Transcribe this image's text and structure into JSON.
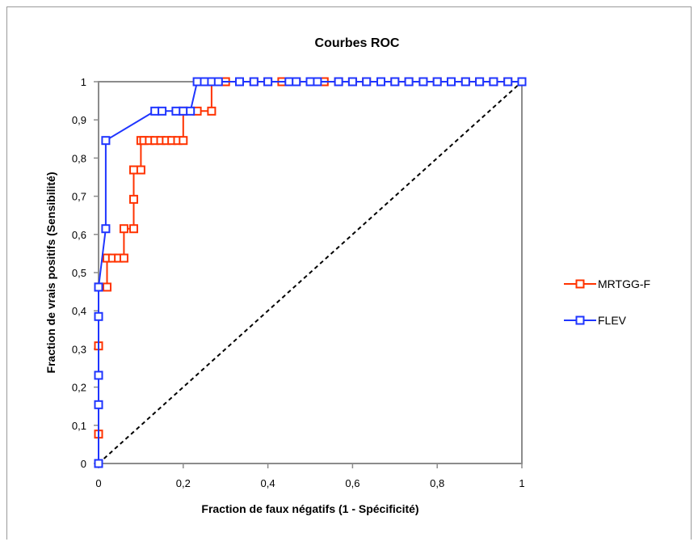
{
  "chart_data": {
    "type": "line",
    "title": "Courbes ROC",
    "xlabel": "Fraction de faux négatifs (1 - Spécificité)",
    "ylabel": "Fraction de vrais positifs (Sensibilité)",
    "xlim": [
      0,
      1
    ],
    "ylim": [
      0,
      1
    ],
    "x_ticks": [
      "0",
      "0,2",
      "0,4",
      "0,6",
      "0,8",
      "1"
    ],
    "y_ticks": [
      "0",
      "0,1",
      "0,2",
      "0,3",
      "0,4",
      "0,5",
      "0,6",
      "0,7",
      "0,8",
      "0,9",
      "1"
    ],
    "legend_position": "right",
    "grid": false,
    "series": [
      {
        "name": "MRTGG-F",
        "color": "#ff3300",
        "x": [
          0,
          0,
          0,
          0,
          0.02,
          0.02,
          0.033,
          0.047,
          0.06,
          0.06,
          0.083,
          0.083,
          0.083,
          0.1,
          0.1,
          0.107,
          0.12,
          0.133,
          0.147,
          0.16,
          0.173,
          0.187,
          0.2,
          0.2,
          0.233,
          0.267,
          0.267,
          0.3,
          0.333,
          0.367,
          0.4,
          0.433,
          0.467,
          0.5,
          0.533,
          0.567,
          0.6,
          0.633,
          0.667,
          0.7,
          0.733,
          0.767,
          0.8,
          0.833,
          0.867,
          0.9,
          0.933,
          0.967,
          1
        ],
        "y": [
          0,
          0.077,
          0.308,
          0.462,
          0.462,
          0.538,
          0.538,
          0.538,
          0.538,
          0.615,
          0.615,
          0.692,
          0.769,
          0.769,
          0.846,
          0.846,
          0.846,
          0.846,
          0.846,
          0.846,
          0.846,
          0.846,
          0.846,
          0.923,
          0.923,
          0.923,
          1,
          1,
          1,
          1,
          1,
          1,
          1,
          1,
          1,
          1,
          1,
          1,
          1,
          1,
          1,
          1,
          1,
          1,
          1,
          1,
          1,
          1,
          1
        ]
      },
      {
        "name": "FLEV",
        "color": "#1f35ff",
        "x": [
          0,
          0,
          0,
          0,
          0,
          0,
          0.017,
          0.017,
          0.133,
          0.15,
          0.183,
          0.2,
          0.217,
          0.233,
          0.25,
          0.267,
          0.283,
          0.333,
          0.367,
          0.4,
          0.45,
          0.467,
          0.5,
          0.517,
          0.567,
          0.6,
          0.633,
          0.667,
          0.7,
          0.733,
          0.767,
          0.8,
          0.833,
          0.867,
          0.9,
          0.933,
          0.967,
          1
        ],
        "y": [
          0,
          0.154,
          0.231,
          0.385,
          0.462,
          0.462,
          0.615,
          0.846,
          0.923,
          0.923,
          0.923,
          0.923,
          0.923,
          1,
          1,
          1,
          1,
          1,
          1,
          1,
          1,
          1,
          1,
          1,
          1,
          1,
          1,
          1,
          1,
          1,
          1,
          1,
          1,
          1,
          1,
          1,
          1,
          1
        ]
      }
    ],
    "reference_line": {
      "x": [
        0,
        1
      ],
      "y": [
        0,
        1
      ],
      "color": "#000000",
      "style": "dashed"
    }
  }
}
